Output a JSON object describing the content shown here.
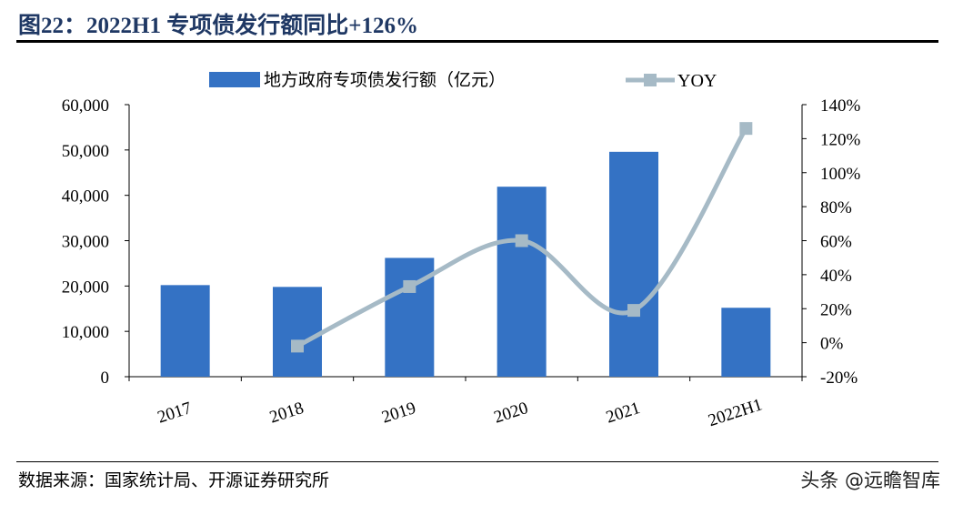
{
  "title": "图22：2022H1 专项债发行额同比+126%",
  "source": "数据来源：国家统计局、开源证券研究所",
  "watermark": "头条 @远瞻智库",
  "chart_data": {
    "type": "bar+line",
    "categories": [
      "2017",
      "2018",
      "2019",
      "2020",
      "2021",
      "2022H1"
    ],
    "series": [
      {
        "name": "地方政府专项债发行额（亿元）",
        "type": "bar",
        "axis": "left",
        "color": "#3472c4",
        "values": [
          20200,
          19800,
          26200,
          41900,
          49600,
          15200
        ]
      },
      {
        "name": "YOY",
        "type": "line",
        "axis": "right",
        "color": "#a6bac6",
        "values": [
          null,
          -2,
          33,
          60,
          19,
          126
        ]
      }
    ],
    "left_axis": {
      "ylim": [
        0,
        60000
      ],
      "ticks": [
        "0",
        "10,000",
        "20,000",
        "30,000",
        "40,000",
        "50,000",
        "60,000"
      ]
    },
    "right_axis": {
      "ylim": [
        -20,
        140
      ],
      "ticks": [
        "-20%",
        "0%",
        "20%",
        "40%",
        "60%",
        "80%",
        "100%",
        "120%",
        "140%"
      ]
    },
    "legend": "top"
  }
}
